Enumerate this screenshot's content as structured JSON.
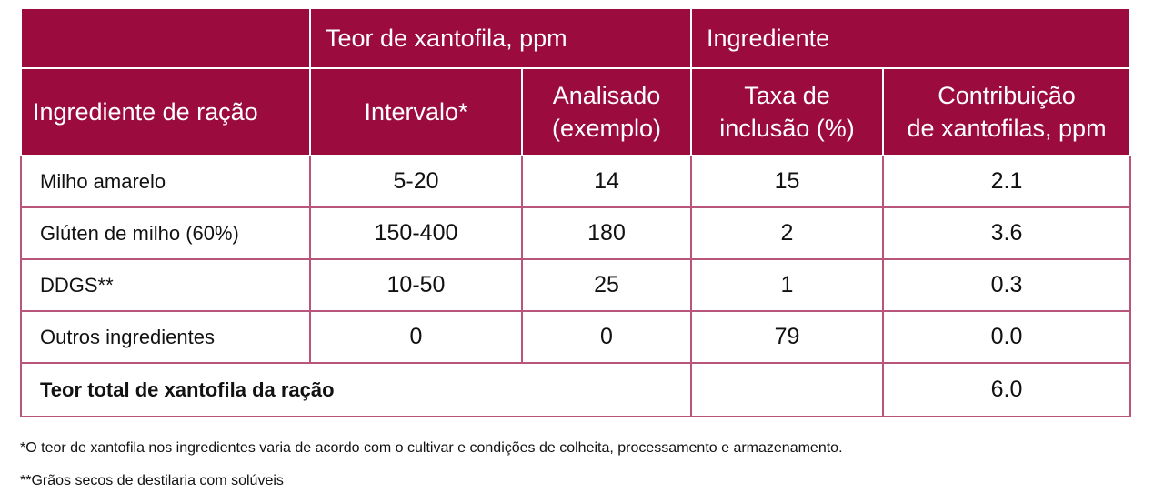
{
  "table": {
    "header_top": [
      "Teor de xantofila, ppm",
      "Ingrediente"
    ],
    "header": [
      "Ingrediente de ração",
      "Intervalo*",
      "Analisado\n(exemplo)",
      "Taxa de\ninclusão (%)",
      "Contribuição\nde xantofilas, ppm"
    ],
    "rows": [
      [
        "Milho amarelo",
        "5-20",
        "14",
        "15",
        "2.1"
      ],
      [
        "Glúten de milho (60%)",
        "150-400",
        "180",
        "2",
        "3.6"
      ],
      [
        "DDGS**",
        "10-50",
        "25",
        "1",
        "0.3"
      ],
      [
        "Outros ingredientes",
        "0",
        "0",
        "79",
        "0.0"
      ]
    ],
    "total": {
      "label": "Teor total de xantofila da ração",
      "value": "6.0"
    }
  },
  "footnotes": [
    "*O teor de xantofila nos ingredientes varia de acordo com o cultivar e condições de colheita, processamento e armazenamento.",
    "**Grãos secos de destilaria com solúveis"
  ]
}
